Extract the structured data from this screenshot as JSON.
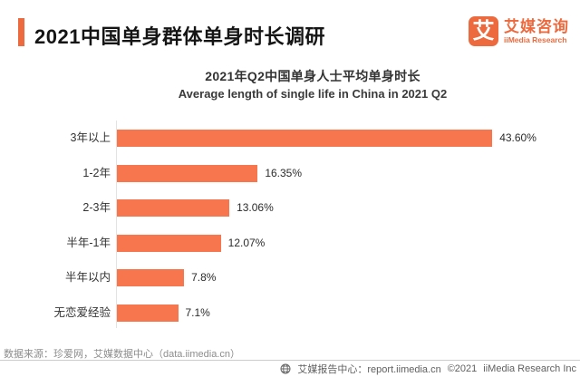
{
  "header": {
    "title": "2021中国单身群体单身时长调研",
    "logo": {
      "glyph": "艾",
      "brand_cn": "艾媒咨询",
      "brand_en": "iiMedia Research"
    }
  },
  "chart_data": {
    "type": "bar",
    "orientation": "horizontal",
    "title": "2021年Q2中国单身人士平均单身时长",
    "subtitle": "Average length of single life in China in 2021 Q2",
    "categories": [
      "3年以上",
      "1-2年",
      "2-3年",
      "半年-1年",
      "半年以内",
      "无恋爱经验"
    ],
    "values": [
      43.6,
      16.35,
      13.06,
      12.07,
      7.8,
      7.1
    ],
    "value_labels": [
      "43.60%",
      "16.35%",
      "13.06%",
      "12.07%",
      "7.8%",
      "7.1%"
    ],
    "unit": "%",
    "xlim": [
      0,
      45
    ],
    "grid": false,
    "legend": false,
    "bar_color": "#F8764E"
  },
  "footer": {
    "source": "数据来源：珍爱网，艾媒数据中心（data.iimedia.cn）",
    "report_center": "艾媒报告中心：report.iimedia.cn",
    "copyright": "©2021",
    "company": "iiMedia Research  Inc"
  },
  "colors": {
    "brand_orange": "#EC6A3D",
    "bar_orange": "#F8764E",
    "axis_gray": "#E3E3E3"
  }
}
